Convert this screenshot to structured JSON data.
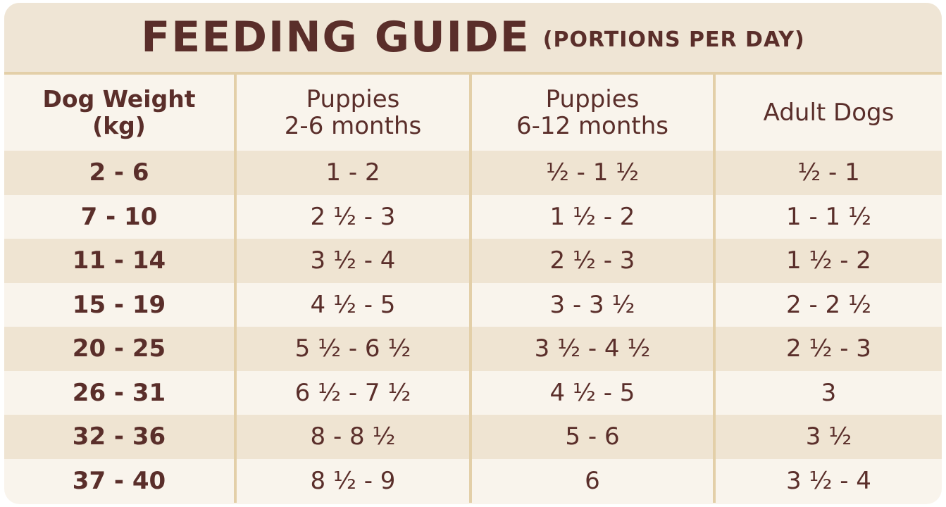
{
  "header": {
    "title": "FEEDING GUIDE",
    "subtitle": "(PORTIONS PER DAY)"
  },
  "table": {
    "columns": [
      [
        "Dog Weight",
        "(kg)"
      ],
      [
        "Puppies",
        "2-6 months"
      ],
      [
        "Puppies",
        "6-12 months"
      ],
      [
        "Adult Dogs"
      ]
    ],
    "rows": [
      [
        "2 - 6",
        "1 - 2",
        "½ - 1 ½",
        "½ - 1"
      ],
      [
        "7 - 10",
        "2 ½ - 3",
        "1 ½ - 2",
        "1 - 1 ½"
      ],
      [
        "11 - 14",
        "3 ½ - 4",
        "2 ½ - 3",
        "1 ½ - 2"
      ],
      [
        "15 - 19",
        "4 ½ - 5",
        "3 - 3 ½",
        "2 - 2 ½"
      ],
      [
        "20 - 25",
        "5 ½ - 6 ½",
        "3 ½ - 4 ½",
        "2 ½ - 3"
      ],
      [
        "26 - 31",
        "6 ½ - 7 ½",
        "4 ½ - 5",
        "3"
      ],
      [
        "32 - 36",
        "8 - 8 ½",
        "5 - 6",
        "3 ½"
      ],
      [
        "37 - 40",
        "8 ½ - 9",
        "6",
        "3 ½ - 4"
      ]
    ]
  }
}
